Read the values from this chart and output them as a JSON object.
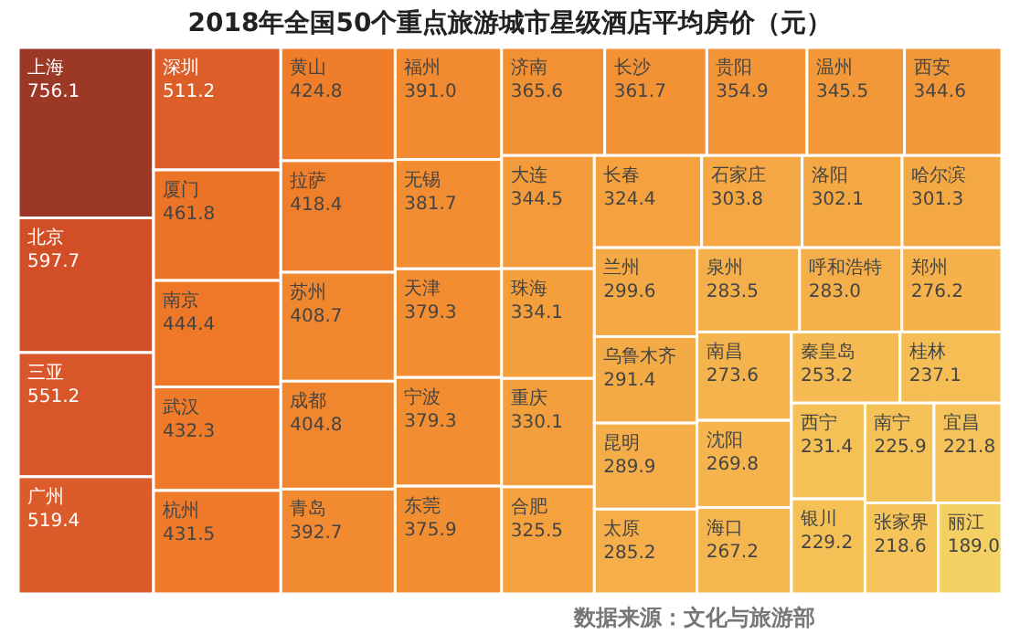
{
  "chart_data": {
    "type": "other",
    "title": "2018年全国50个重点旅游城市星级酒店平均房价（元）",
    "categories": [
      "上海",
      "北京",
      "三亚",
      "广州",
      "深圳",
      "厦门",
      "南京",
      "武汉",
      "杭州",
      "黄山",
      "拉萨",
      "苏州",
      "成都",
      "青岛",
      "福州",
      "无锡",
      "天津",
      "宁波",
      "东莞",
      "济南",
      "长沙",
      "贵阳",
      "温州",
      "西安",
      "大连",
      "珠海",
      "重庆",
      "合肥",
      "长春",
      "石家庄",
      "洛阳",
      "哈尔滨",
      "兰州",
      "乌鲁木齐",
      "昆明",
      "太原",
      "泉州",
      "呼和浩特",
      "郑州",
      "南昌",
      "沈阳",
      "海口",
      "秦皇岛",
      "桂林",
      "西宁",
      "银川",
      "南宁",
      "宜昌",
      "张家界",
      "丽江"
    ],
    "values": [
      756.1,
      597.7,
      551.2,
      519.4,
      511.2,
      461.8,
      444.4,
      432.3,
      431.5,
      424.8,
      418.4,
      408.7,
      404.8,
      392.7,
      391.0,
      381.7,
      379.3,
      379.3,
      375.9,
      365.6,
      361.7,
      354.9,
      345.5,
      344.6,
      344.5,
      334.1,
      330.1,
      325.5,
      324.4,
      303.8,
      302.1,
      301.3,
      299.6,
      291.4,
      289.9,
      285.2,
      283.5,
      283.0,
      276.2,
      273.6,
      269.8,
      267.2,
      253.2,
      237.1,
      231.4,
      229.2,
      225.9,
      221.8,
      218.6,
      189.0
    ],
    "value_labels": [
      "756.1",
      "597.7",
      "551.2",
      "519.4",
      "511.2",
      "461.8",
      "444.4",
      "432.3",
      "431.5",
      "424.8",
      "418.4",
      "408.7",
      "404.8",
      "392.7",
      "391.0",
      "381.7",
      "379.3",
      "379.3",
      "375.9",
      "365.6",
      "361.7",
      "354.9",
      "345.5",
      "344.6",
      "344.5",
      "334.1",
      "330.1",
      "325.5",
      "324.4",
      "303.8",
      "302.1",
      "301.3",
      "299.6",
      "291.4",
      "289.9",
      "285.2",
      "283.5",
      "283.0",
      "276.2",
      "273.6",
      "269.8",
      "267.2",
      "253.2",
      "237.1",
      "231.4",
      "229.2",
      "225.9",
      "221.8",
      "218.6",
      "189.0"
    ],
    "colors": [
      "#9b3826",
      "#d24e26",
      "#d9562a",
      "#dc5b2a",
      "#de5e2a",
      "#ec7426",
      "#ee7828",
      "#ef7b2a",
      "#ef7b2a",
      "#ef7d2a",
      "#f07f2c",
      "#f0862e",
      "#f0872e",
      "#f18a30",
      "#f18a30",
      "#f28d31",
      "#f28d31",
      "#f28d31",
      "#f28e32",
      "#f29134",
      "#f29235",
      "#f39537",
      "#f39838",
      "#f39838",
      "#f39a3a",
      "#f49e3c",
      "#f49f3d",
      "#f4a13e",
      "#f4a13e",
      "#f4a743",
      "#f4a843",
      "#f4a843",
      "#f4a944",
      "#f4ab46",
      "#f4ad48",
      "#f5ae49",
      "#f5af4a",
      "#f5af4a",
      "#f5b24c",
      "#f5b34d",
      "#f5b44e",
      "#f5b54f",
      "#f5ba52",
      "#f5be55",
      "#f5c056",
      "#f5c157",
      "#f5c258",
      "#f5c359",
      "#f5c45a",
      "#f4cf62"
    ],
    "annotations": [
      "数据来源：文化与旅游部"
    ]
  }
}
